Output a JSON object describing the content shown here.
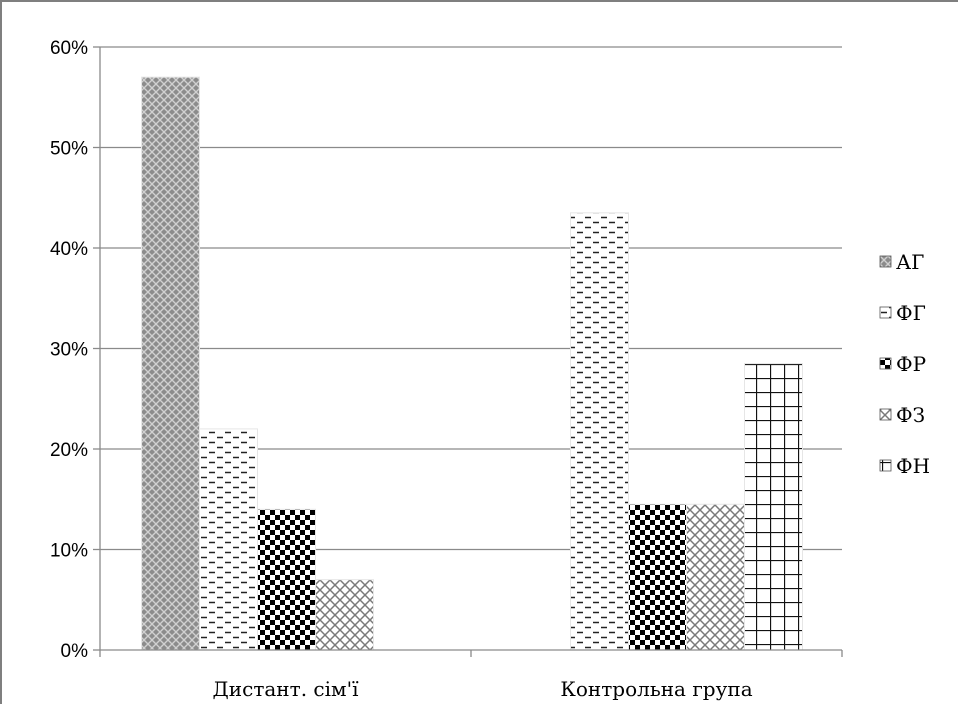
{
  "chart_data": {
    "type": "bar",
    "categories": [
      "Дистант. сім'ї",
      "Контрольна група"
    ],
    "series": [
      {
        "name": "АГ",
        "values": [
          57,
          0
        ],
        "pattern": "pat-ag"
      },
      {
        "name": "ФГ",
        "values": [
          22,
          43.5
        ],
        "pattern": "pat-fg"
      },
      {
        "name": "ФР",
        "values": [
          14,
          14.5
        ],
        "pattern": "pat-fr"
      },
      {
        "name": "ФЗ",
        "values": [
          7,
          14.5
        ],
        "pattern": "pat-fz"
      },
      {
        "name": "ФН",
        "values": [
          0,
          28.5
        ],
        "pattern": "pat-fn"
      }
    ],
    "ylim": [
      0,
      60
    ],
    "yticks": [
      0,
      10,
      20,
      30,
      40,
      50,
      60
    ],
    "ytick_labels": [
      "0%",
      "10%",
      "20%",
      "30%",
      "40%",
      "50%",
      "60%"
    ],
    "grid": true,
    "legend_position": "right",
    "title": "",
    "xlabel": "",
    "ylabel": ""
  }
}
